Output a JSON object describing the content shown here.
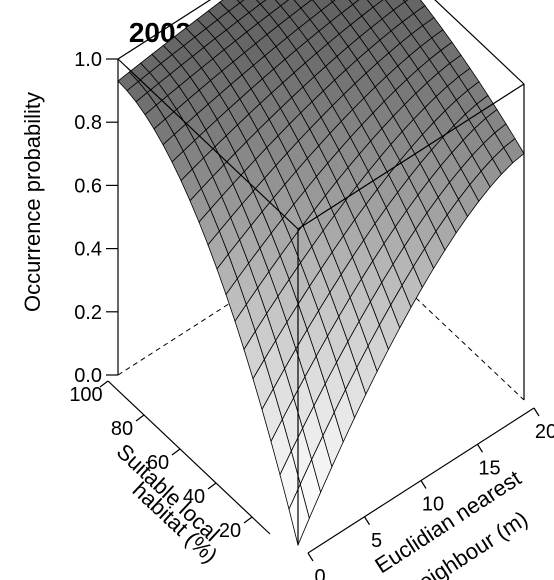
{
  "chart_data": {
    "type": "surface",
    "title": "2002",
    "zlabel": "Occurrence probability",
    "xlabel": "Suitable local habitat (%)",
    "ylabel": "Euclidian nearest neighbour (m)",
    "x_ticks": [
      "100",
      "80",
      "60",
      "40",
      "20"
    ],
    "y_ticks": [
      "0",
      "5",
      "10",
      "15",
      "20"
    ],
    "z_ticks": [
      "0.0",
      "0.2",
      "0.4",
      "0.6",
      "0.8",
      "1.0"
    ],
    "xlim": [
      0,
      100
    ],
    "ylim": [
      0,
      20
    ],
    "zlim": [
      0,
      1
    ],
    "grid_lines": 20,
    "surface_corners": [
      {
        "habitat": 0,
        "distance": 0,
        "probability": 0.0
      },
      {
        "habitat": 100,
        "distance": 0,
        "probability": 0.93
      },
      {
        "habitat": 0,
        "distance": 20,
        "probability": 0.78
      },
      {
        "habitat": 100,
        "distance": 20,
        "probability": 1.0
      }
    ],
    "colors": {
      "high": "#5a5a5a",
      "low": "#ffffff",
      "mesh": "#000000"
    }
  }
}
